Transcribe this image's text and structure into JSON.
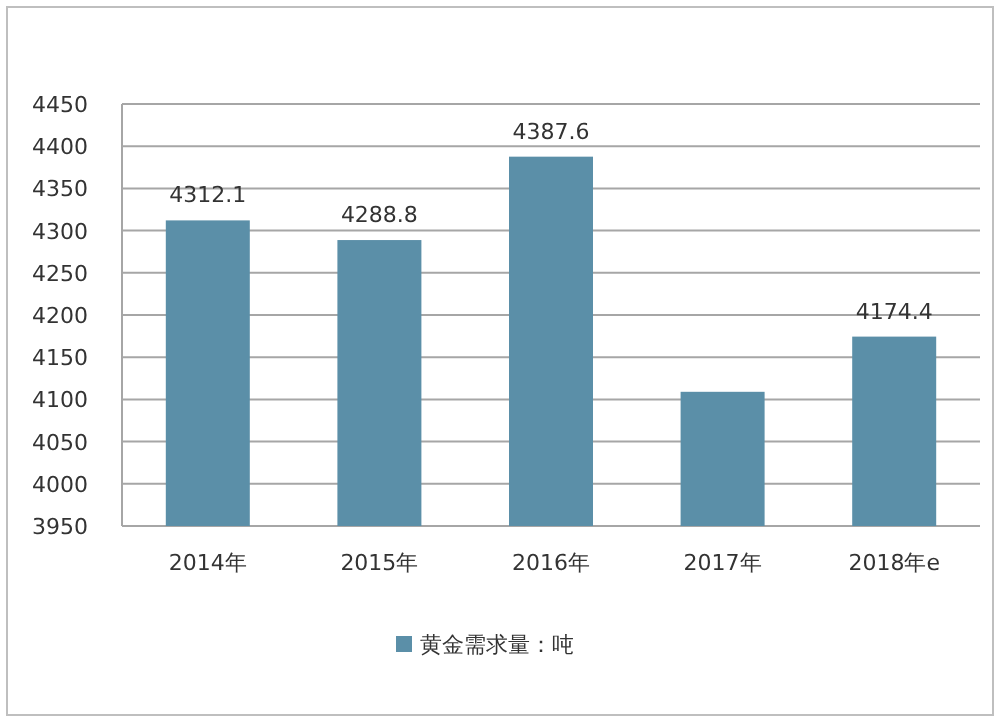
{
  "chart_data": {
    "type": "bar",
    "categories": [
      "2014年",
      "2015年",
      "2016年",
      "2017年",
      "2018年e"
    ],
    "series": [
      {
        "name": "黄金需求量：吨",
        "color": "#5b8fa8",
        "values": [
          4312.1,
          4288.8,
          4387.6,
          4109,
          4174.4
        ],
        "value_labels": [
          "4312.1",
          "4288.8",
          "4387.6",
          null,
          "4174.4"
        ]
      }
    ],
    "ylim": [
      3950,
      4450
    ],
    "yticks": [
      3950,
      4000,
      4050,
      4100,
      4150,
      4200,
      4250,
      4300,
      4350,
      4400,
      4450
    ],
    "grid": "y",
    "legend": "bottom"
  }
}
